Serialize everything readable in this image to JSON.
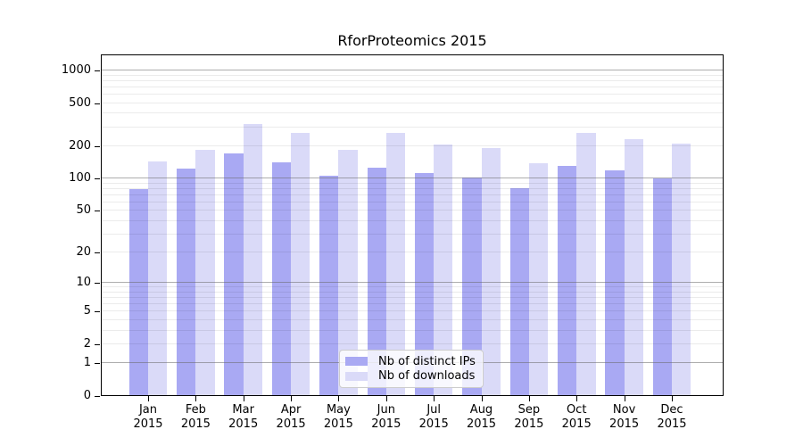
{
  "figure": {
    "title": "RforProteomics 2015"
  },
  "legend": {
    "items": [
      {
        "label": "Nb of distinct IPs",
        "color": "#a9a9f3"
      },
      {
        "label": "Nb of downloads",
        "color": "#dadaf8"
      }
    ]
  },
  "chart_data": {
    "type": "bar",
    "title": "RforProteomics 2015",
    "categories": [
      "Jan",
      "Feb",
      "Mar",
      "Apr",
      "May",
      "Jun",
      "Jul",
      "Aug",
      "Sep",
      "Oct",
      "Nov",
      "Dec"
    ],
    "x_tick_line2": "2015",
    "series": [
      {
        "name": "Nb of distinct IPs",
        "color": "#a9a9f3",
        "values": [
          78,
          121,
          168,
          139,
          104,
          125,
          110,
          101,
          80,
          128,
          118,
          98
        ]
      },
      {
        "name": "Nb of downloads",
        "color": "#dadaf8",
        "values": [
          142,
          182,
          314,
          258,
          181,
          262,
          205,
          190,
          137,
          261,
          229,
          208
        ]
      }
    ],
    "xlabel": "",
    "ylabel": "",
    "yscale": "log1p",
    "ylim": [
      0,
      1400
    ],
    "y_ticks_labeled": [
      1000,
      500,
      200,
      100,
      50,
      20,
      10,
      5,
      2,
      1,
      0
    ],
    "y_major_gridlines": [
      1,
      10,
      100,
      1000
    ],
    "y_minor_gridlines": [
      2,
      3,
      4,
      5,
      6,
      7,
      8,
      9,
      20,
      30,
      40,
      50,
      60,
      70,
      80,
      90,
      200,
      300,
      400,
      500,
      600,
      700,
      800,
      900
    ],
    "grid": true,
    "legend_position": "inside lower center"
  },
  "colors": {
    "bar_ips": "#a9a9f3",
    "bar_downloads": "#dadaf8",
    "major_grid": "rgba(105,105,105,0.55)",
    "minor_grid": "rgba(0,0,0,0.08)",
    "spine": "#000000",
    "background": "#ffffff"
  }
}
